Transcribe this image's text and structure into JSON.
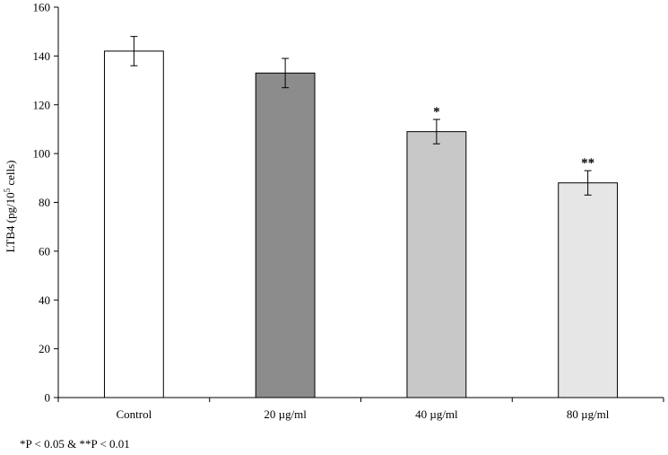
{
  "chart_data": {
    "type": "bar",
    "categories": [
      "Control",
      "20 µg/ml",
      "40 µg/ml",
      "80 µg/ml"
    ],
    "values": [
      142,
      133,
      109,
      88
    ],
    "errors": [
      6,
      6,
      5,
      5
    ],
    "significance": [
      "",
      "",
      "*",
      "**"
    ],
    "bar_colors": [
      "#ffffff",
      "#8c8c8c",
      "#c8c8c8",
      "#e6e6e6"
    ],
    "ylabel_main": "LTB4 (pg/10",
    "ylabel_sup": "5",
    "ylabel_tail": " cells)",
    "ylim": [
      0,
      160
    ],
    "yticks": [
      0,
      20,
      40,
      60,
      80,
      100,
      120,
      140,
      160
    ],
    "footnote": "*P < 0.05  & **P < 0.01",
    "grid": false
  }
}
